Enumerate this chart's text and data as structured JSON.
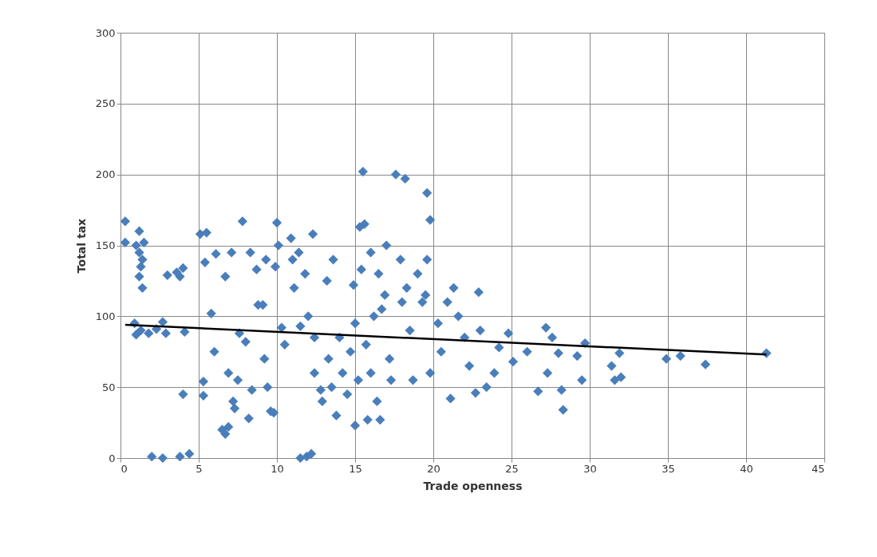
{
  "chart_data": {
    "type": "scatter",
    "xlabel": "Trade openness",
    "ylabel": "Total tax",
    "xlim": [
      0,
      45
    ],
    "xticks": [
      0,
      5,
      10,
      15,
      20,
      25,
      30,
      35,
      40,
      45
    ],
    "ylim": [
      0,
      300
    ],
    "yticks": [
      0,
      50,
      100,
      150,
      200,
      250,
      300
    ],
    "grid": true,
    "series": [
      {
        "color": "#4a7ebb",
        "marker": "diamond",
        "x": [
          0.3,
          0.3,
          1.2,
          1,
          1.5,
          1.2,
          1.4,
          1.3,
          1.2,
          1.4,
          0.9,
          1.3,
          1,
          1.8,
          2.3,
          2.7,
          2.9,
          4.1,
          2,
          2.7,
          3.8,
          4.4,
          4,
          3,
          3.6,
          4,
          3.8,
          5.1,
          5.5,
          5.4,
          5.8,
          5.3,
          5.3,
          6.1,
          6,
          6.5,
          6.7,
          6.9,
          6.7,
          6.9,
          7.1,
          7.3,
          7.2,
          7.5,
          7.8,
          7.6,
          8,
          8.2,
          8.3,
          8.4,
          8.7,
          8.8,
          9.1,
          9.2,
          9.4,
          9.6,
          9.8,
          9.3,
          9.9,
          10,
          10.1,
          10.3,
          10.5,
          10.9,
          11,
          11.1,
          11.4,
          11.5,
          11.5,
          11.9,
          12.2,
          11.8,
          12,
          12.3,
          12.4,
          12.4,
          12.8,
          12.9,
          13.2,
          13.6,
          13.3,
          13.5,
          13.8,
          14,
          14.2,
          14.5,
          14.7,
          14.9,
          15,
          15,
          15.2,
          15.3,
          15.4,
          15.5,
          15.6,
          15.7,
          15.8,
          16,
          16,
          16.2,
          16.4,
          16.5,
          16.6,
          16.7,
          16.9,
          17,
          17.2,
          17.3,
          17.6,
          17.9,
          18.2,
          18,
          18.3,
          18.5,
          18.7,
          19,
          19.3,
          19.6,
          19.8,
          19.6,
          19.5,
          19.8,
          20.3,
          20.5,
          20.9,
          21.1,
          21.3,
          21.6,
          22,
          22.3,
          22.7,
          22.9,
          23,
          23.4,
          23.9,
          24.2,
          24.8,
          25.1,
          26,
          26.7,
          27.2,
          27.3,
          27.6,
          28,
          28.2,
          28.3,
          29.2,
          29.5,
          29.7,
          31.4,
          31.6,
          31.9,
          32,
          34.9,
          35.8,
          37.4,
          41.3
        ],
        "values": [
          167,
          152,
          160,
          150,
          152,
          145,
          140,
          135,
          128,
          120,
          95,
          90,
          87,
          88,
          91,
          96,
          88,
          89,
          1,
          0,
          1,
          3,
          45,
          129,
          131,
          134,
          128,
          158,
          159,
          138,
          102,
          54,
          44,
          144,
          75,
          20,
          17,
          22,
          128,
          60,
          145,
          35,
          40,
          55,
          167,
          88,
          82,
          28,
          145,
          48,
          133,
          108,
          108,
          70,
          50,
          33,
          32,
          140,
          135,
          166,
          150,
          92,
          80,
          155,
          140,
          120,
          145,
          93,
          0,
          1,
          3,
          130,
          100,
          158,
          85,
          60,
          48,
          40,
          125,
          140,
          70,
          50,
          30,
          85,
          60,
          45,
          75,
          122,
          95,
          23,
          55,
          163,
          133,
          202,
          165,
          80,
          27,
          145,
          60,
          100,
          40,
          130,
          27,
          105,
          115,
          150,
          70,
          55,
          200,
          140,
          197,
          110,
          120,
          90,
          55,
          130,
          110,
          187,
          168,
          140,
          115,
          60,
          95,
          75,
          110,
          42,
          120,
          100,
          85,
          65,
          46,
          117,
          90,
          50,
          60,
          78,
          88,
          68,
          75,
          47,
          92,
          60,
          85,
          74,
          48,
          34,
          72,
          55,
          81,
          65,
          55,
          74,
          57,
          70,
          72,
          66,
          74
        ]
      },
      {
        "color": "#000000",
        "type": "line",
        "x": [
          0.3,
          41.3
        ],
        "values": [
          94,
          73
        ]
      }
    ]
  }
}
